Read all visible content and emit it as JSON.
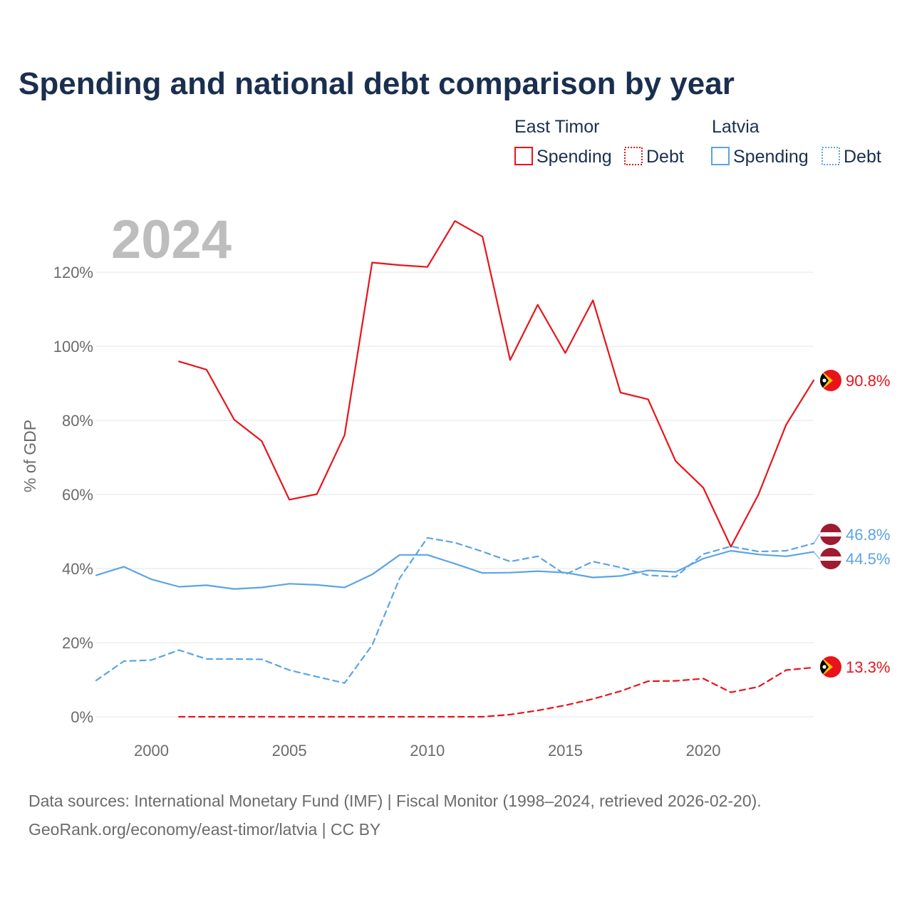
{
  "chart_data": {
    "type": "line",
    "title": "Spending and national debt comparison by year",
    "watermark_year": "2024",
    "ylabel": "% of GDP",
    "xlabel": "",
    "xlim": [
      1998,
      2024
    ],
    "ylim": [
      0,
      130
    ],
    "y_ticks": [
      0,
      20,
      40,
      60,
      80,
      100,
      120
    ],
    "y_tick_labels": [
      "0%",
      "20%",
      "40%",
      "60%",
      "80%",
      "100%",
      "120%"
    ],
    "x_ticks": [
      2000,
      2005,
      2010,
      2015,
      2020
    ],
    "x_tick_labels": [
      "2000",
      "2005",
      "2010",
      "2015",
      "2020"
    ],
    "grid": true,
    "legend": {
      "placement": "top-right",
      "groups": [
        {
          "country": "East Timor",
          "items": [
            "Spending",
            "Debt"
          ]
        },
        {
          "country": "Latvia",
          "items": [
            "Spending",
            "Debt"
          ]
        }
      ]
    },
    "series": [
      {
        "name": "East Timor Spending",
        "country": "East Timor",
        "metric": "Spending",
        "color": "#e8141b",
        "dash": "solid",
        "x": [
          2001,
          2002,
          2003,
          2004,
          2005,
          2006,
          2007,
          2008,
          2009,
          2010,
          2011,
          2012,
          2013,
          2014,
          2015,
          2016,
          2017,
          2018,
          2019,
          2020,
          2021,
          2022,
          2023,
          2024
        ],
        "values": [
          95.9,
          93.7,
          80.2,
          74.4,
          58.6,
          60.1,
          76.0,
          122.6,
          121.9,
          121.4,
          133.8,
          129.6,
          96.3,
          111.2,
          98.2,
          112.4,
          87.5,
          85.7,
          69.0,
          61.8,
          45.9,
          60.0,
          78.8,
          90.8
        ],
        "end_label": "90.8%"
      },
      {
        "name": "East Timor Debt",
        "country": "East Timor",
        "metric": "Debt",
        "color": "#e8141b",
        "dash": "dashed",
        "x": [
          2001,
          2002,
          2003,
          2004,
          2005,
          2006,
          2007,
          2008,
          2009,
          2010,
          2011,
          2012,
          2013,
          2014,
          2015,
          2016,
          2017,
          2018,
          2019,
          2020,
          2021,
          2022,
          2023,
          2024
        ],
        "values": [
          0,
          0,
          0,
          0,
          0,
          0,
          0,
          0,
          0,
          0,
          0,
          0,
          0.6,
          1.7,
          3.1,
          4.8,
          6.9,
          9.6,
          9.7,
          10.3,
          6.6,
          8.1,
          12.6,
          13.3
        ],
        "end_label": "13.3%"
      },
      {
        "name": "Latvia Spending",
        "country": "Latvia",
        "metric": "Spending",
        "color": "#5ba4e5",
        "dash": "solid",
        "x": [
          1998,
          1999,
          2000,
          2001,
          2002,
          2003,
          2004,
          2005,
          2006,
          2007,
          2008,
          2009,
          2010,
          2011,
          2012,
          2013,
          2014,
          2015,
          2016,
          2017,
          2018,
          2019,
          2020,
          2021,
          2022,
          2023,
          2024
        ],
        "values": [
          38.2,
          40.5,
          37.1,
          35.1,
          35.5,
          34.5,
          34.9,
          35.9,
          35.6,
          34.9,
          38.4,
          43.7,
          43.7,
          41.3,
          38.8,
          38.9,
          39.3,
          38.9,
          37.6,
          38.0,
          39.5,
          39.1,
          42.7,
          44.8,
          43.8,
          43.3,
          44.5
        ],
        "end_label": "44.5%"
      },
      {
        "name": "Latvia Debt",
        "country": "Latvia",
        "metric": "Debt",
        "color": "#5ba4e5",
        "dash": "dashed",
        "x": [
          1998,
          1999,
          2000,
          2001,
          2002,
          2003,
          2004,
          2005,
          2006,
          2007,
          2008,
          2009,
          2010,
          2011,
          2012,
          2013,
          2014,
          2015,
          2016,
          2017,
          2018,
          2019,
          2020,
          2021,
          2022,
          2023,
          2024
        ],
        "values": [
          9.8,
          15.0,
          15.3,
          18.0,
          15.6,
          15.6,
          15.5,
          12.6,
          10.8,
          9.1,
          19.3,
          37.4,
          48.3,
          47.0,
          44.6,
          41.9,
          43.3,
          38.4,
          41.9,
          40.3,
          38.2,
          37.8,
          43.9,
          46.0,
          44.6,
          44.8,
          46.8
        ],
        "end_label": "46.8%"
      }
    ]
  },
  "source": {
    "line1": "Data sources: International Monetary Fund (IMF) | Fiscal Monitor (1998–2024, retrieved 2026-02-20).",
    "line2": "GeoRank.org/economy/east-timor/latvia | CC BY"
  },
  "colors": {
    "east_timor": "#e8141b",
    "latvia": "#5ba4e5",
    "title": "#1a2f4f",
    "axis_text": "#6b6b6b",
    "watermark": "#bdbdbd"
  }
}
